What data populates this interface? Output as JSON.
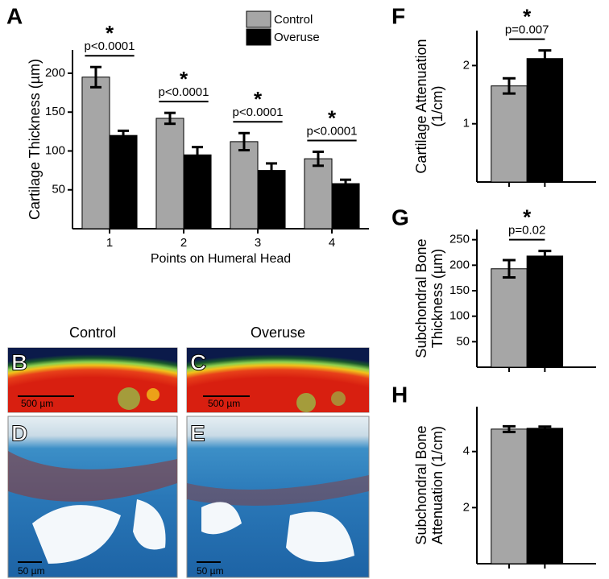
{
  "chart_data": [
    {
      "type": "bar",
      "panel": "A",
      "y_label": [
        "Cartilage Thickness (µm)"
      ],
      "x_label": "Points on Humeral Head",
      "categories": [
        "1",
        "2",
        "3",
        "4"
      ],
      "series": [
        {
          "name": "Control",
          "color": "#a6a6a6",
          "values": [
            195,
            142,
            112,
            90
          ],
          "errors": [
            13,
            7,
            11,
            9
          ]
        },
        {
          "name": "Overuse",
          "color": "#000000",
          "values": [
            120,
            95,
            75,
            58
          ],
          "errors": [
            6,
            10,
            9,
            5
          ]
        }
      ],
      "significance": [
        {
          "star": "*",
          "p": "p<0.0001"
        },
        {
          "star": "*",
          "p": "p<0.0001"
        },
        {
          "star": "*",
          "p": "p<0.0001"
        },
        {
          "star": "*",
          "p": "p<0.0001"
        }
      ],
      "ylim": [
        0,
        230
      ],
      "yticks": [
        50,
        100,
        150,
        200
      ],
      "legend": "top-right"
    },
    {
      "type": "bar",
      "panel": "F",
      "y_label": [
        "Cartilage Attenuation",
        "(1/cm)"
      ],
      "values": [
        1.65,
        2.12
      ],
      "errors": [
        0.13,
        0.14
      ],
      "colors": [
        "#a6a6a6",
        "#000000"
      ],
      "significance": {
        "star": "*",
        "p": "p=0.007"
      },
      "ylim": [
        0,
        2.6
      ],
      "yticks": [
        1,
        2
      ]
    },
    {
      "type": "bar",
      "panel": "G",
      "y_label": [
        "Subchondral Bone",
        "Thickness (µm)"
      ],
      "values": [
        193,
        218
      ],
      "errors": [
        17,
        10
      ],
      "colors": [
        "#a6a6a6",
        "#000000"
      ],
      "significance": {
        "star": "*",
        "p": "p=0.02"
      },
      "ylim": [
        0,
        270
      ],
      "yticks": [
        50,
        100,
        150,
        200,
        250
      ]
    },
    {
      "type": "bar",
      "panel": "H",
      "y_label": [
        "Subchondral Bone",
        "Attenuation (1/cm)"
      ],
      "values": [
        4.8,
        4.83
      ],
      "errors": [
        0.1,
        0.06
      ],
      "colors": [
        "#a6a6a6",
        "#000000"
      ],
      "ylim": [
        0,
        5.6
      ],
      "yticks": [
        2,
        4
      ]
    }
  ],
  "images": {
    "columns": [
      "Control",
      "Overuse"
    ],
    "panels": [
      {
        "letter": "B",
        "scale": "500 µm"
      },
      {
        "letter": "C",
        "scale": "500 µm"
      },
      {
        "letter": "D",
        "scale": "50 µm"
      },
      {
        "letter": "E",
        "scale": "50 µm"
      }
    ]
  }
}
